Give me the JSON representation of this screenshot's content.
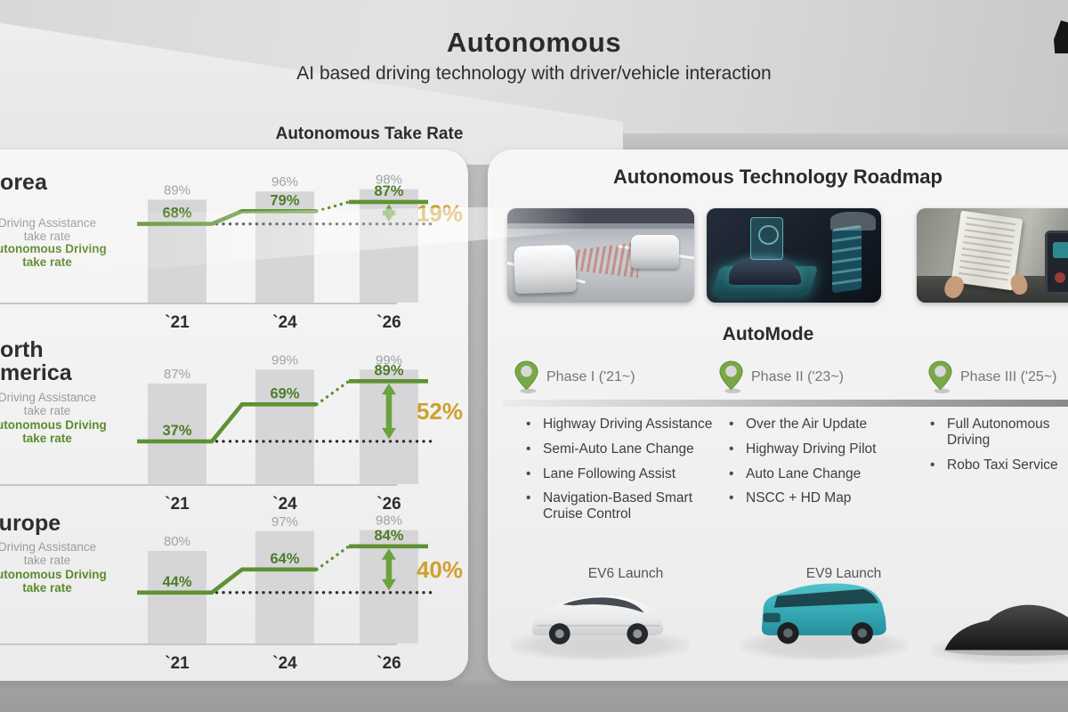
{
  "header": {
    "title": "Autonomous",
    "subtitle": "AI based driving technology with driver/vehicle interaction"
  },
  "take_rate": {
    "section_title": "Autonomous Take Rate",
    "legend_assist": "Driving Assistance\ntake rate",
    "legend_auto": "Autonomous Driving\ntake rate"
  },
  "chart_data": {
    "type": "bar",
    "title": "Autonomous Take Rate",
    "unit": "%",
    "categories": [
      "`21",
      "`24",
      "`26"
    ],
    "series_labels": [
      "Driving Assistance take rate",
      "Autonomous Driving take rate"
    ],
    "ylim": [
      0,
      110
    ],
    "regions": [
      {
        "name": "Korea",
        "driving_assistance": [
          89,
          96,
          98
        ],
        "autonomous_driving": [
          68,
          79,
          87
        ],
        "gap_2026": 19,
        "gap_2026_label": "19%"
      },
      {
        "name": "North\nAmerica",
        "driving_assistance": [
          87,
          99,
          99
        ],
        "autonomous_driving": [
          37,
          69,
          89
        ],
        "gap_2026": 52,
        "gap_2026_label": "52%"
      },
      {
        "name": "Europe",
        "driving_assistance": [
          80,
          97,
          98
        ],
        "autonomous_driving": [
          44,
          64,
          84
        ],
        "gap_2026": 40,
        "gap_2026_label": "40%"
      }
    ]
  },
  "roadmap": {
    "title": "Autonomous Technology Roadmap",
    "automode_title": "AutoMode",
    "photos": [
      "highway-radar-driving-assistance-photo",
      "ota-hologram-ev-photo",
      "hands-free-reading-interior-photo"
    ],
    "phases": [
      {
        "label": "Phase I ('21~)",
        "items": [
          "Highway Driving Assistance",
          "Semi-Auto Lane Change",
          "Lane Following Assist",
          "Navigation-Based Smart Cruise Control"
        ],
        "launch": "EV6 Launch"
      },
      {
        "label": "Phase II ('23~)",
        "items": [
          "Over the Air Update",
          "Highway Driving Pilot",
          "Auto Lane Change",
          "NSCC + HD Map"
        ],
        "launch": "EV9 Launch"
      },
      {
        "label": "Phase III ('25~)",
        "items": [
          "Full Autonomous Driving",
          "Robo Taxi Service"
        ],
        "launch": ""
      }
    ]
  },
  "colors": {
    "line_green": "#5f9133",
    "text_green": "#4e7c27",
    "arrow_green": "#6aa23d",
    "gold": "#cfa030",
    "bar_gray": "#d6d6d8",
    "bar_label_gray": "#9fa3a6",
    "dot_black": "#2b2b2b",
    "year_dark": "#2d2d2d",
    "axis_gray": "#c6c6c6"
  }
}
